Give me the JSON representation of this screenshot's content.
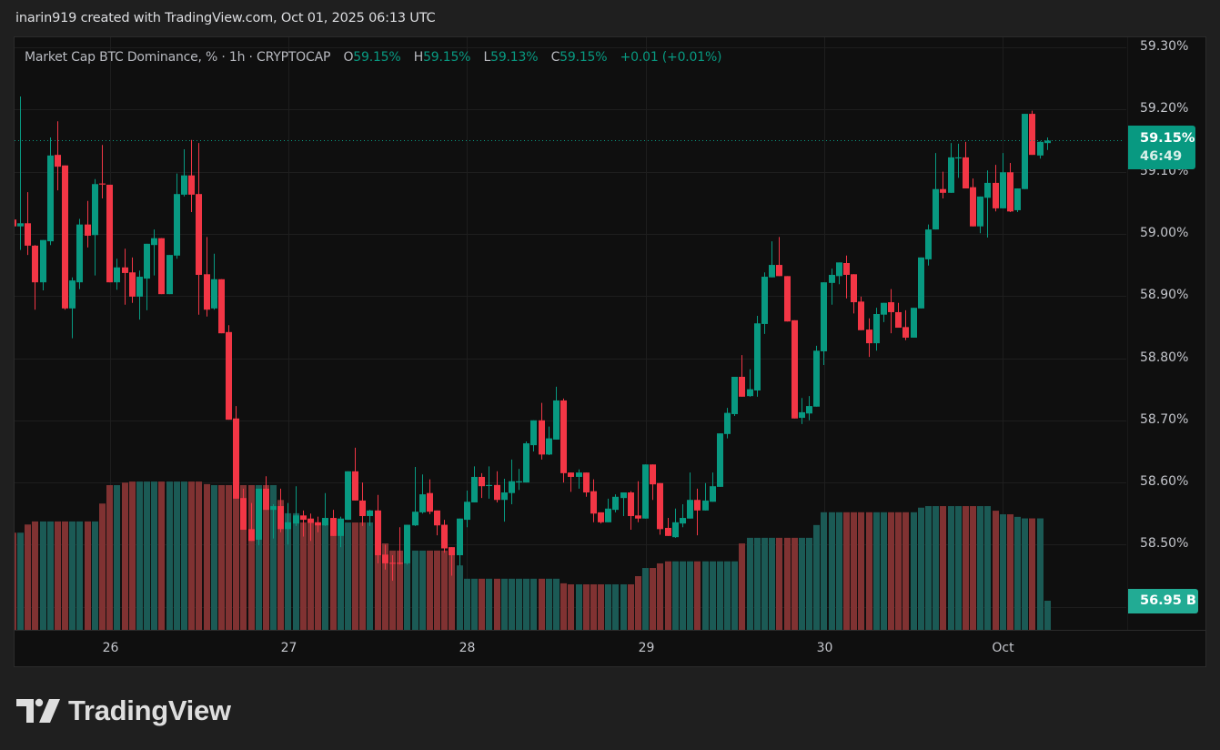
{
  "header": {
    "credit": "inarin919 created with TradingView.com, Oct 01, 2025 06:13 UTC"
  },
  "legend": {
    "symbol": "Market Cap BTC Dominance, % · 1h · CRYPTOCAP",
    "open_label": "O",
    "open": "59.15%",
    "high_label": "H",
    "high": "59.15%",
    "low_label": "L",
    "low": "59.13%",
    "close_label": "C",
    "close": "59.15%",
    "change": "+0.01 (+0.01%)"
  },
  "price_tag": {
    "price": "59.15%",
    "countdown": "46:49"
  },
  "volume_tag": {
    "value": "56.95 B"
  },
  "logo": {
    "text": "TradingView"
  },
  "colors": {
    "up": "#089981",
    "down": "#f23645",
    "volume_up": "#1b5a55",
    "volume_down": "#803232",
    "background": "#0f0f0f",
    "grid": "#1e1e1e"
  },
  "chart_data": {
    "type": "candlestick",
    "interval": "1h",
    "title": "Market Cap BTC Dominance, %",
    "y_unit": "%",
    "y_ticks": [
      "59.30%",
      "59.20%",
      "59.10%",
      "59.00%",
      "58.90%",
      "58.80%",
      "58.70%",
      "58.60%",
      "58.50%"
    ],
    "ylim": [
      58.35,
      59.315
    ],
    "x_labels": [
      "26",
      "27",
      "28",
      "29",
      "30",
      "Oct"
    ],
    "grid": true,
    "volume_unit": "B",
    "candle_fields": [
      "open",
      "high",
      "low",
      "close",
      "volume"
    ],
    "candles": [
      [
        59.023,
        59.03,
        59.0,
        59.012,
        190
      ],
      [
        59.012,
        59.221,
        58.974,
        59.017,
        190
      ],
      [
        59.017,
        59.067,
        58.966,
        58.981,
        206
      ],
      [
        58.981,
        58.982,
        58.878,
        58.922,
        212
      ],
      [
        58.922,
        58.99,
        58.909,
        58.99,
        212
      ],
      [
        58.988,
        59.155,
        58.982,
        59.126,
        212
      ],
      [
        59.127,
        59.181,
        59.07,
        59.108,
        212
      ],
      [
        59.11,
        59.11,
        58.878,
        58.88,
        212
      ],
      [
        58.88,
        58.93,
        58.832,
        58.925,
        212
      ],
      [
        58.922,
        59.024,
        58.911,
        59.015,
        212
      ],
      [
        59.015,
        59.053,
        58.978,
        58.997,
        212
      ],
      [
        58.998,
        59.088,
        58.933,
        59.08,
        212
      ],
      [
        59.081,
        59.143,
        59.057,
        59.08,
        247
      ],
      [
        59.079,
        59.079,
        58.922,
        58.922,
        283
      ],
      [
        58.922,
        58.96,
        58.91,
        58.946,
        283
      ],
      [
        58.946,
        58.976,
        58.886,
        58.937,
        288
      ],
      [
        58.938,
        58.962,
        58.889,
        58.899,
        290
      ],
      [
        58.899,
        58.941,
        58.862,
        58.931,
        290
      ],
      [
        58.928,
        58.984,
        58.877,
        58.984,
        290
      ],
      [
        58.982,
        59.007,
        58.933,
        58.993,
        290
      ],
      [
        58.993,
        58.993,
        58.903,
        58.903,
        290
      ],
      [
        58.903,
        58.966,
        58.903,
        58.966,
        290
      ],
      [
        58.965,
        59.097,
        58.96,
        59.064,
        290
      ],
      [
        59.063,
        59.136,
        59.06,
        59.094,
        290
      ],
      [
        59.094,
        59.151,
        59.035,
        59.063,
        290
      ],
      [
        59.064,
        59.146,
        58.87,
        58.934,
        290
      ],
      [
        58.935,
        58.995,
        58.867,
        58.878,
        285
      ],
      [
        58.88,
        58.968,
        58.878,
        58.927,
        283
      ],
      [
        58.927,
        58.927,
        58.84,
        58.84,
        283
      ],
      [
        58.842,
        58.853,
        58.701,
        58.701,
        283
      ],
      [
        58.703,
        58.723,
        58.574,
        58.574,
        283
      ],
      [
        58.575,
        58.59,
        58.524,
        58.524,
        283
      ],
      [
        58.525,
        58.567,
        58.506,
        58.506,
        283
      ],
      [
        58.508,
        58.59,
        58.499,
        58.59,
        283
      ],
      [
        58.59,
        58.61,
        58.556,
        58.556,
        283
      ],
      [
        58.556,
        58.565,
        58.51,
        58.562,
        283
      ],
      [
        58.562,
        58.59,
        58.52,
        58.525,
        254
      ],
      [
        58.525,
        58.567,
        58.5,
        58.536,
        228
      ],
      [
        58.534,
        58.594,
        58.53,
        58.547,
        228
      ],
      [
        58.547,
        58.555,
        58.513,
        58.54,
        210
      ],
      [
        58.542,
        58.55,
        58.506,
        58.535,
        210
      ],
      [
        58.536,
        58.545,
        58.52,
        58.531,
        210
      ],
      [
        58.531,
        58.583,
        58.53,
        58.543,
        210
      ],
      [
        58.543,
        58.556,
        58.514,
        58.514,
        210
      ],
      [
        58.514,
        58.545,
        58.496,
        58.542,
        210
      ],
      [
        58.54,
        58.618,
        58.54,
        58.618,
        210
      ],
      [
        58.618,
        58.656,
        58.571,
        58.571,
        210
      ],
      [
        58.571,
        58.6,
        58.53,
        58.546,
        210
      ],
      [
        58.546,
        58.556,
        58.53,
        58.555,
        210
      ],
      [
        58.555,
        58.58,
        58.47,
        58.483,
        169
      ],
      [
        58.484,
        58.5,
        58.46,
        58.47,
        169
      ],
      [
        58.471,
        58.483,
        58.442,
        58.47,
        155
      ],
      [
        58.471,
        58.528,
        58.468,
        58.47,
        155
      ],
      [
        58.47,
        58.532,
        58.468,
        58.532,
        155
      ],
      [
        58.531,
        58.625,
        58.53,
        58.553,
        155
      ],
      [
        58.552,
        58.613,
        58.55,
        58.581,
        155
      ],
      [
        58.583,
        58.605,
        58.549,
        58.553,
        155
      ],
      [
        58.555,
        58.555,
        58.515,
        58.531,
        155
      ],
      [
        58.532,
        58.54,
        58.487,
        58.494,
        155
      ],
      [
        58.496,
        58.496,
        58.45,
        58.483,
        155
      ],
      [
        58.483,
        58.542,
        58.466,
        58.542,
        126
      ],
      [
        58.54,
        58.587,
        58.528,
        58.569,
        100
      ],
      [
        58.568,
        58.626,
        58.568,
        58.609,
        100
      ],
      [
        58.609,
        58.615,
        58.575,
        58.594,
        100
      ],
      [
        58.595,
        58.626,
        58.574,
        58.596,
        100
      ],
      [
        58.596,
        58.618,
        58.568,
        58.572,
        100
      ],
      [
        58.572,
        58.606,
        58.537,
        58.584,
        100
      ],
      [
        58.583,
        58.637,
        58.565,
        58.602,
        100
      ],
      [
        58.601,
        58.622,
        58.588,
        58.602,
        100
      ],
      [
        58.6,
        58.666,
        58.6,
        58.663,
        100
      ],
      [
        58.66,
        58.7,
        58.65,
        58.7,
        100
      ],
      [
        58.7,
        58.728,
        58.637,
        58.645,
        100
      ],
      [
        58.645,
        58.69,
        58.644,
        58.671,
        100
      ],
      [
        58.669,
        58.754,
        58.669,
        58.732,
        100
      ],
      [
        58.732,
        58.735,
        58.6,
        58.615,
        91
      ],
      [
        58.616,
        58.616,
        58.585,
        58.609,
        89
      ],
      [
        58.609,
        58.621,
        58.59,
        58.616,
        89
      ],
      [
        58.616,
        58.616,
        58.577,
        58.584,
        89
      ],
      [
        58.586,
        58.605,
        58.536,
        58.55,
        89
      ],
      [
        58.552,
        58.552,
        58.534,
        58.536,
        89
      ],
      [
        58.536,
        58.574,
        58.536,
        58.558,
        89
      ],
      [
        58.556,
        58.581,
        58.552,
        58.577,
        89
      ],
      [
        58.575,
        58.584,
        58.546,
        58.584,
        89
      ],
      [
        58.584,
        58.586,
        58.524,
        58.546,
        89
      ],
      [
        58.547,
        58.602,
        58.536,
        58.542,
        105
      ],
      [
        58.542,
        58.629,
        58.542,
        58.629,
        121
      ],
      [
        58.629,
        58.629,
        58.572,
        58.597,
        121
      ],
      [
        58.599,
        58.599,
        58.516,
        58.525,
        130
      ],
      [
        58.527,
        58.543,
        58.514,
        58.514,
        134
      ],
      [
        58.512,
        58.558,
        58.511,
        58.536,
        134
      ],
      [
        58.534,
        58.565,
        58.528,
        58.543,
        134
      ],
      [
        58.542,
        58.616,
        58.542,
        58.572,
        134
      ],
      [
        58.572,
        58.59,
        58.515,
        58.555,
        134
      ],
      [
        58.555,
        58.599,
        58.555,
        58.571,
        134
      ],
      [
        58.569,
        58.616,
        58.569,
        58.594,
        134
      ],
      [
        58.593,
        58.679,
        58.593,
        58.679,
        134
      ],
      [
        58.678,
        58.72,
        58.671,
        58.712,
        134
      ],
      [
        58.71,
        58.77,
        58.707,
        58.77,
        134
      ],
      [
        58.77,
        58.805,
        58.738,
        58.738,
        169
      ],
      [
        58.739,
        58.782,
        58.738,
        58.75,
        180
      ],
      [
        58.748,
        58.868,
        58.738,
        58.856,
        180
      ],
      [
        58.855,
        58.938,
        58.839,
        58.931,
        180
      ],
      [
        58.93,
        58.988,
        58.93,
        58.95,
        180
      ],
      [
        58.95,
        58.995,
        58.932,
        58.932,
        180
      ],
      [
        58.932,
        58.932,
        58.859,
        58.859,
        180
      ],
      [
        58.861,
        58.861,
        58.703,
        58.703,
        180
      ],
      [
        58.704,
        58.736,
        58.694,
        58.713,
        180
      ],
      [
        58.711,
        58.739,
        58.7,
        58.723,
        180
      ],
      [
        58.722,
        58.82,
        58.722,
        58.812,
        205
      ],
      [
        58.811,
        58.922,
        58.789,
        58.922,
        230
      ],
      [
        58.921,
        58.944,
        58.886,
        58.934,
        230
      ],
      [
        58.932,
        58.954,
        58.919,
        58.954,
        230
      ],
      [
        58.953,
        58.965,
        58.896,
        58.934,
        230
      ],
      [
        58.935,
        58.935,
        58.872,
        58.89,
        230
      ],
      [
        58.891,
        58.899,
        58.845,
        58.845,
        230
      ],
      [
        58.846,
        58.864,
        58.802,
        58.824,
        230
      ],
      [
        58.824,
        58.881,
        58.812,
        58.871,
        230
      ],
      [
        58.87,
        58.889,
        58.858,
        58.889,
        230
      ],
      [
        58.89,
        58.911,
        58.84,
        58.874,
        230
      ],
      [
        58.874,
        58.889,
        58.849,
        58.849,
        230
      ],
      [
        58.85,
        58.877,
        58.829,
        58.833,
        230
      ],
      [
        58.833,
        58.881,
        58.833,
        58.881,
        230
      ],
      [
        58.88,
        58.962,
        58.88,
        58.962,
        239
      ],
      [
        58.959,
        59.015,
        58.949,
        59.007,
        242
      ],
      [
        59.007,
        59.13,
        59.007,
        59.072,
        242
      ],
      [
        59.072,
        59.1,
        59.057,
        59.066,
        242
      ],
      [
        59.066,
        59.146,
        59.066,
        59.123,
        242
      ],
      [
        59.122,
        59.145,
        59.09,
        59.123,
        242
      ],
      [
        59.123,
        59.148,
        59.073,
        59.073,
        242
      ],
      [
        59.075,
        59.089,
        59.012,
        59.012,
        242
      ],
      [
        59.012,
        59.06,
        59.001,
        59.06,
        242
      ],
      [
        59.058,
        59.102,
        58.994,
        59.082,
        242
      ],
      [
        59.082,
        59.111,
        59.036,
        59.041,
        233
      ],
      [
        59.041,
        59.13,
        59.041,
        59.099,
        226
      ],
      [
        59.099,
        59.114,
        59.035,
        59.036,
        226
      ],
      [
        59.038,
        59.073,
        59.035,
        59.073,
        221
      ],
      [
        59.072,
        59.193,
        59.072,
        59.193,
        218
      ],
      [
        59.193,
        59.198,
        59.127,
        59.127,
        218
      ],
      [
        59.126,
        59.149,
        59.121,
        59.148,
        218
      ],
      [
        59.146,
        59.155,
        59.135,
        59.15,
        56.95
      ]
    ],
    "last_price": 59.15
  }
}
